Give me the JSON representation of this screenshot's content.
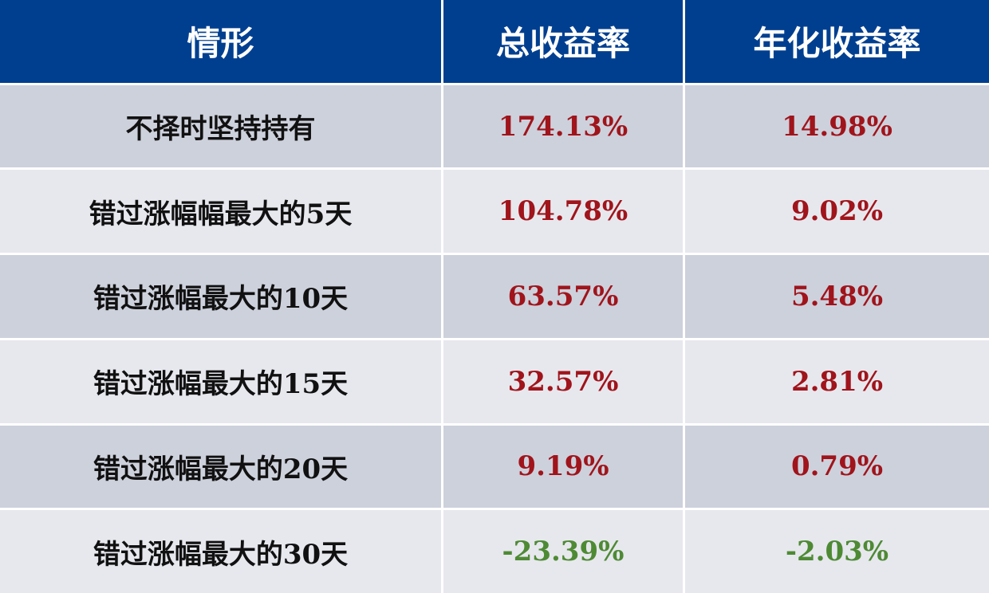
{
  "table": {
    "header": [
      "情形",
      "总收益率",
      "年化收益率"
    ],
    "rows": [
      [
        "不择时坚持持有",
        "174.13%",
        "14.98%"
      ],
      [
        "错过涨幅幅最大的5天",
        "104.78%",
        "9.02%"
      ],
      [
        "错过涨幅最大的10天",
        "63.57%",
        "5.48%"
      ],
      [
        "错过涨幅最大的15天",
        "32.57%",
        "2.81%"
      ],
      [
        "错过涨幅最大的20天",
        "9.19%",
        "0.79%"
      ],
      [
        "错过涨幅最大的30天",
        "-23.39%",
        "-2.03%"
      ]
    ]
  }
}
